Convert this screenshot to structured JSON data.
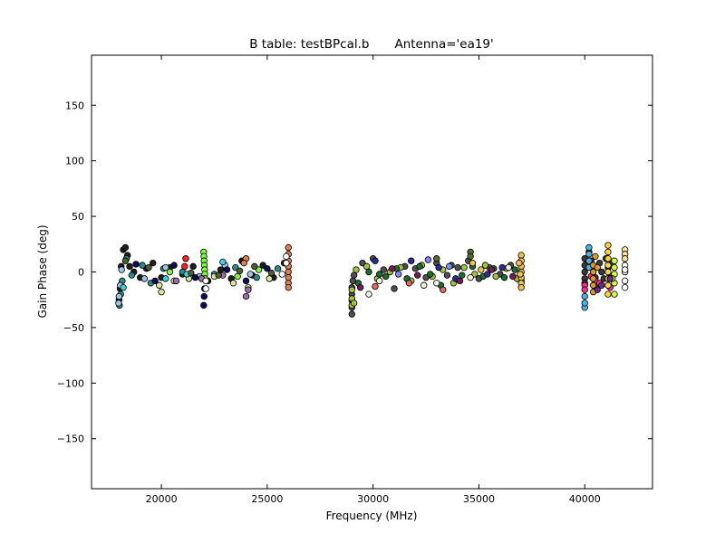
{
  "chart_data": {
    "type": "scatter",
    "title_left": "B table: testBPcal.b",
    "title_right": "Antenna='ea19'",
    "xlabel": "Frequency (MHz)",
    "ylabel": "Gain Phase (deg)",
    "xlim": [
      16700,
      43200
    ],
    "ylim": [
      -195,
      195
    ],
    "xticks": [
      {
        "value": 20000,
        "label": "20000"
      },
      {
        "value": 25000,
        "label": "25000"
      },
      {
        "value": 30000,
        "label": "30000"
      },
      {
        "value": 35000,
        "label": "35000"
      },
      {
        "value": 40000,
        "label": "40000"
      }
    ],
    "yticks": [
      {
        "value": 150,
        "label": "150"
      },
      {
        "value": 100,
        "label": "100"
      },
      {
        "value": 50,
        "label": "50"
      },
      {
        "value": 0,
        "label": "0"
      },
      {
        "value": -50,
        "label": "−50"
      },
      {
        "value": -100,
        "label": "−100"
      },
      {
        "value": -150,
        "label": "−150"
      }
    ],
    "grid": false,
    "legend": "none",
    "series": [
      {
        "color": "#1f1f1f",
        "points": [
          [
            18000,
            -25
          ],
          [
            18050,
            -15
          ],
          [
            18100,
            5
          ],
          [
            18200,
            20
          ],
          [
            18300,
            22
          ],
          [
            18400,
            15
          ],
          [
            18500,
            5
          ],
          [
            18700,
            0
          ],
          [
            19000,
            -5
          ],
          [
            19300,
            3
          ],
          [
            19600,
            8
          ],
          [
            20000,
            -5
          ],
          [
            20400,
            4
          ],
          [
            21000,
            -2
          ],
          [
            21500,
            5
          ],
          [
            22200,
            -8
          ],
          [
            22800,
            2
          ],
          [
            23300,
            -6
          ],
          [
            23800,
            10
          ],
          [
            24300,
            -3
          ],
          [
            24800,
            6
          ],
          [
            25300,
            -5
          ],
          [
            25800,
            8
          ]
        ]
      },
      {
        "color": "#2a8c8c",
        "points": [
          [
            18020,
            -30
          ],
          [
            18080,
            -20
          ],
          [
            18150,
            -8
          ],
          [
            18350,
            12
          ],
          [
            18600,
            -3
          ],
          [
            19100,
            6
          ],
          [
            19500,
            -10
          ],
          [
            20100,
            3
          ],
          [
            21000,
            0
          ],
          [
            22500,
            -2
          ],
          [
            23500,
            4
          ],
          [
            24500,
            -5
          ],
          [
            25500,
            3
          ]
        ]
      },
      {
        "color": "#a0c4e8",
        "points": [
          [
            17980,
            -28
          ],
          [
            18000,
            -22
          ],
          [
            18060,
            -12
          ],
          [
            18120,
            2
          ],
          [
            19200,
            -6
          ],
          [
            20200,
            4
          ],
          [
            21800,
            -4
          ],
          [
            23000,
            6
          ],
          [
            24200,
            -2
          ]
        ]
      },
      {
        "color": "#0d0d5c",
        "points": [
          [
            18800,
            7
          ],
          [
            19700,
            -8
          ],
          [
            20600,
            6
          ],
          [
            21600,
            -5
          ],
          [
            22000,
            -30
          ],
          [
            22020,
            -22
          ],
          [
            22040,
            -15
          ],
          [
            23100,
            2
          ],
          [
            24000,
            -8
          ],
          [
            25000,
            3
          ]
        ]
      },
      {
        "color": "#7cfc3a",
        "points": [
          [
            22000,
            18
          ],
          [
            22010,
            14
          ],
          [
            22020,
            10
          ],
          [
            22030,
            6
          ],
          [
            22040,
            2
          ],
          [
            22050,
            -2
          ],
          [
            22060,
            -6
          ],
          [
            20400,
            0
          ],
          [
            23600,
            -4
          ],
          [
            24600,
            2
          ]
        ]
      },
      {
        "color": "#d7e6a0",
        "points": [
          [
            20000,
            -18
          ],
          [
            19900,
            -12
          ],
          [
            20600,
            -8
          ],
          [
            21300,
            -6
          ],
          [
            22500,
            -4
          ],
          [
            23400,
            -10
          ],
          [
            24100,
            -14
          ],
          [
            25100,
            -6
          ]
        ]
      },
      {
        "color": "#e08050",
        "points": [
          [
            26000,
            22
          ],
          [
            26000,
            16
          ],
          [
            26000,
            10
          ],
          [
            26000,
            5
          ],
          [
            26000,
            0
          ],
          [
            26000,
            -5
          ],
          [
            26000,
            -10
          ],
          [
            26000,
            -14
          ],
          [
            24000,
            12
          ],
          [
            23900,
            8
          ]
        ]
      },
      {
        "color": "#ff2222",
        "points": [
          [
            21150,
            12
          ],
          [
            21100,
            5
          ]
        ]
      },
      {
        "color": "#a06cb0",
        "points": [
          [
            20700,
            -8
          ],
          [
            21900,
            -6
          ],
          [
            22900,
            -3
          ],
          [
            24000,
            -22
          ],
          [
            24100,
            -16
          ]
        ]
      },
      {
        "color": "#40d0e0",
        "points": [
          [
            20200,
            -6
          ],
          [
            21200,
            -2
          ],
          [
            22900,
            9
          ],
          [
            18200,
            -14
          ]
        ]
      },
      {
        "color": "#ffffff",
        "points": [
          [
            25900,
            14
          ],
          [
            25900,
            8
          ],
          [
            22100,
            -15
          ],
          [
            22100,
            -8
          ],
          [
            25700,
            -2
          ]
        ]
      },
      {
        "color": "#4f5f2e",
        "points": [
          [
            18300,
            10
          ],
          [
            19400,
            4
          ],
          [
            21400,
            -1
          ],
          [
            22700,
            -3
          ],
          [
            23700,
            1
          ],
          [
            25200,
            -1
          ],
          [
            24400,
            5
          ]
        ]
      },
      {
        "color": "#4f4f4f",
        "points": [
          [
            29000,
            -38
          ],
          [
            29000,
            -32
          ],
          [
            29000,
            -26
          ],
          [
            29000,
            -20
          ],
          [
            29000,
            -14
          ],
          [
            29050,
            -8
          ],
          [
            29100,
            -3
          ],
          [
            29500,
            8
          ],
          [
            30000,
            12
          ],
          [
            30500,
            2
          ],
          [
            31000,
            -15
          ],
          [
            31500,
            5
          ],
          [
            32000,
            3
          ],
          [
            32500,
            -5
          ],
          [
            33000,
            8
          ],
          [
            33500,
            -3
          ],
          [
            34000,
            4
          ],
          [
            34500,
            10
          ],
          [
            35000,
            -6
          ],
          [
            35500,
            4
          ],
          [
            36000,
            -2
          ],
          [
            36500,
            6
          ],
          [
            37000,
            -8
          ]
        ]
      },
      {
        "color": "#a4c23a",
        "points": [
          [
            29000,
            -30
          ],
          [
            29000,
            -24
          ],
          [
            29000,
            -16
          ],
          [
            29100,
            -28
          ],
          [
            29200,
            2
          ],
          [
            29700,
            5
          ],
          [
            30200,
            -6
          ],
          [
            30800,
            0
          ],
          [
            31300,
            4
          ],
          [
            31800,
            -8
          ],
          [
            32300,
            6
          ],
          [
            32800,
            -4
          ],
          [
            33300,
            2
          ],
          [
            33800,
            -10
          ],
          [
            34300,
            4
          ],
          [
            34800,
            -2
          ],
          [
            35300,
            6
          ],
          [
            35800,
            -4
          ],
          [
            36300,
            3
          ],
          [
            36800,
            -6
          ]
        ]
      },
      {
        "color": "#1a6e2e",
        "points": [
          [
            29300,
            -10
          ],
          [
            29800,
            0
          ],
          [
            30300,
            -2
          ],
          [
            30600,
            -4
          ],
          [
            31100,
            3
          ],
          [
            31600,
            -6
          ],
          [
            32200,
            5
          ],
          [
            32700,
            -2
          ],
          [
            33200,
            -12
          ],
          [
            33700,
            6
          ],
          [
            34200,
            -3
          ],
          [
            34700,
            5
          ],
          [
            35200,
            -4
          ],
          [
            35700,
            3
          ],
          [
            36200,
            -5
          ],
          [
            36700,
            2
          ]
        ]
      },
      {
        "color": "#efc04a",
        "points": [
          [
            37000,
            15
          ],
          [
            37000,
            10
          ],
          [
            37000,
            5
          ],
          [
            37000,
            0
          ],
          [
            37000,
            -5
          ],
          [
            37000,
            -10
          ],
          [
            37000,
            -14
          ],
          [
            36900,
            8
          ],
          [
            36950,
            -2
          ],
          [
            34700,
            8
          ],
          [
            35100,
            2
          ]
        ]
      },
      {
        "color": "#2b2b9a",
        "points": [
          [
            30100,
            10
          ],
          [
            31800,
            10
          ],
          [
            33100,
            4
          ],
          [
            33900,
            -6
          ],
          [
            35400,
            -2
          ],
          [
            36100,
            4
          ]
        ]
      },
      {
        "color": "#f0f0dc",
        "points": [
          [
            29800,
            -20
          ],
          [
            30300,
            -8
          ],
          [
            32400,
            -12
          ],
          [
            33000,
            -10
          ],
          [
            34600,
            -5
          ],
          [
            36400,
            4
          ]
        ]
      },
      {
        "color": "#7a1a5a",
        "points": [
          [
            30900,
            3
          ],
          [
            32100,
            -3
          ],
          [
            34100,
            -8
          ],
          [
            35600,
            2
          ],
          [
            36600,
            -4
          ],
          [
            29400,
            -14
          ]
        ]
      },
      {
        "color": "#8888ff",
        "points": [
          [
            32600,
            11
          ],
          [
            31200,
            -2
          ],
          [
            33600,
            5
          ]
        ]
      },
      {
        "color": "#e06a5a",
        "points": [
          [
            30100,
            -13
          ],
          [
            31700,
            -10
          ],
          [
            33300,
            -16
          ]
        ]
      },
      {
        "color": "#556b2f",
        "points": [
          [
            34600,
            18
          ],
          [
            34600,
            14
          ],
          [
            33000,
            12
          ]
        ]
      },
      {
        "color": "#3a3a3a",
        "points": [
          [
            40000,
            12
          ],
          [
            40000,
            6
          ],
          [
            40000,
            0
          ],
          [
            40000,
            -6
          ],
          [
            40000,
            -10
          ],
          [
            40200,
            18
          ],
          [
            40300,
            10
          ],
          [
            40400,
            2
          ],
          [
            40500,
            -5
          ],
          [
            40600,
            -14
          ],
          [
            40700,
            8
          ],
          [
            40800,
            0
          ],
          [
            40900,
            -6
          ],
          [
            41000,
            12
          ],
          [
            41100,
            4
          ],
          [
            41200,
            -4
          ],
          [
            41300,
            8
          ]
        ]
      },
      {
        "color": "#4ab4e8",
        "points": [
          [
            40000,
            -32
          ],
          [
            40000,
            -28
          ],
          [
            40000,
            -22
          ],
          [
            40200,
            22
          ],
          [
            40200,
            16
          ],
          [
            40200,
            10
          ],
          [
            40200,
            4
          ]
        ]
      },
      {
        "color": "#ff2a8c",
        "points": [
          [
            40000,
            -12
          ],
          [
            40000,
            -16
          ],
          [
            40500,
            -8
          ],
          [
            40700,
            -10
          ],
          [
            41200,
            -14
          ],
          [
            40300,
            -4
          ]
        ]
      },
      {
        "color": "#d99a2a",
        "points": [
          [
            40400,
            -18
          ],
          [
            40400,
            -12
          ],
          [
            40400,
            -6
          ],
          [
            40400,
            0
          ],
          [
            40400,
            6
          ],
          [
            40500,
            14
          ],
          [
            40600,
            4
          ]
        ]
      },
      {
        "color": "#ffd23a",
        "points": [
          [
            41100,
            24
          ],
          [
            41100,
            18
          ],
          [
            41100,
            12
          ],
          [
            41100,
            6
          ],
          [
            41100,
            0
          ],
          [
            41100,
            -6
          ],
          [
            41100,
            -12
          ],
          [
            41100,
            -20
          ]
        ]
      },
      {
        "color": "#d0ff4a",
        "points": [
          [
            41400,
            10
          ],
          [
            41400,
            4
          ],
          [
            41400,
            -2
          ],
          [
            41400,
            -10
          ],
          [
            41400,
            -20
          ],
          [
            41300,
            -6
          ]
        ]
      },
      {
        "color": "#6a2a8a",
        "points": [
          [
            40800,
            -12
          ],
          [
            41200,
            -6
          ],
          [
            40600,
            -16
          ]
        ]
      },
      {
        "color": "#ffffff",
        "points": [
          [
            41900,
            6
          ],
          [
            41900,
            0
          ],
          [
            41900,
            -8
          ],
          [
            41900,
            -14
          ],
          [
            41900,
            2
          ]
        ]
      },
      {
        "color": "#ffe4a0",
        "points": [
          [
            41900,
            20
          ],
          [
            41900,
            16
          ],
          [
            41900,
            12
          ]
        ]
      }
    ]
  }
}
